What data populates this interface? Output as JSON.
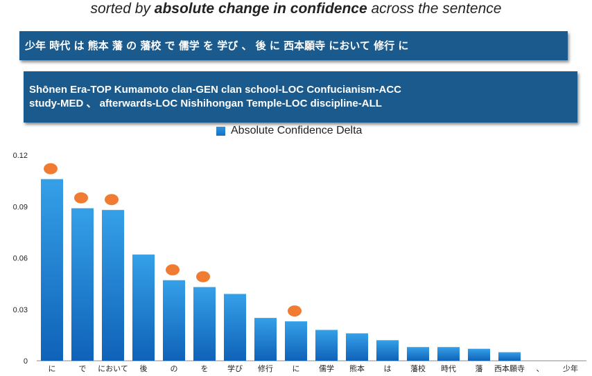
{
  "header": {
    "subtitle_pre": "sorted by ",
    "subtitle_bold": "absolute change in confidence",
    "subtitle_post": " across the sentence"
  },
  "boxes": {
    "japanese": "少年 時代 は 熊本 藩 の 藩校 で 儒学 を 学び 、 後 に 西本願寺 において 修行 に",
    "gloss_line1": "Shōnen Era-TOP Kumamoto clan-GEN clan school-LOC Confucianism-ACC",
    "gloss_line2": "study-MED 、 afterwards-LOC Nishihongan Temple-LOC discipline-ALL"
  },
  "colors": {
    "bar_top": "#35a0e8",
    "bar_bottom": "#0f62b8",
    "marker": "#ef7c32",
    "box": "#1a5a8c"
  },
  "chart_data": {
    "type": "bar",
    "legend": "Absolute Confidence Delta",
    "legend_position": "top-center",
    "ylim": [
      0,
      0.12
    ],
    "yticks": [
      "0",
      "0.03",
      "0.06",
      "0.09",
      "0.12"
    ],
    "ytick_values": [
      0,
      0.03,
      0.06,
      0.09,
      0.12
    ],
    "grid": false,
    "categories": [
      "に",
      "で",
      "において",
      "後",
      "の",
      "を",
      "学び",
      "修行",
      "に",
      "儒学",
      "熊本",
      "は",
      "藩校",
      "時代",
      "藩",
      "西本願寺",
      "、",
      "少年"
    ],
    "series": [
      {
        "name": "Absolute Confidence Delta",
        "values": [
          0.106,
          0.089,
          0.088,
          0.062,
          0.047,
          0.043,
          0.039,
          0.025,
          0.023,
          0.018,
          0.016,
          0.012,
          0.008,
          0.008,
          0.007,
          0.005,
          0.0,
          0.0
        ]
      }
    ],
    "markers": [
      true,
      true,
      true,
      false,
      true,
      true,
      false,
      false,
      true,
      false,
      false,
      false,
      false,
      false,
      false,
      false,
      false,
      false
    ]
  }
}
